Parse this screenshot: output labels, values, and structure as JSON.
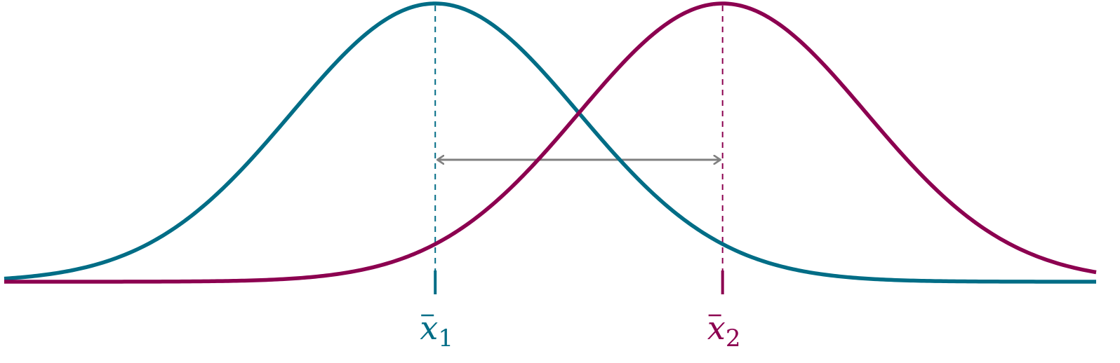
{
  "distributions": [
    {
      "id": "group-1",
      "mean_symbol": "x",
      "mean_subscript": "1",
      "mean": 0,
      "sd": 1,
      "color": "#006d86"
    },
    {
      "id": "group-2",
      "mean_symbol": "x",
      "mean_subscript": "2",
      "mean": 2,
      "sd": 1,
      "color": "#8c0050"
    }
  ],
  "difference_arrow": {
    "from_mean": 0,
    "to_mean": 2,
    "color": "#808080"
  },
  "axis": {
    "x_range": [
      -3,
      4.6
    ],
    "color": "#8c0050"
  }
}
